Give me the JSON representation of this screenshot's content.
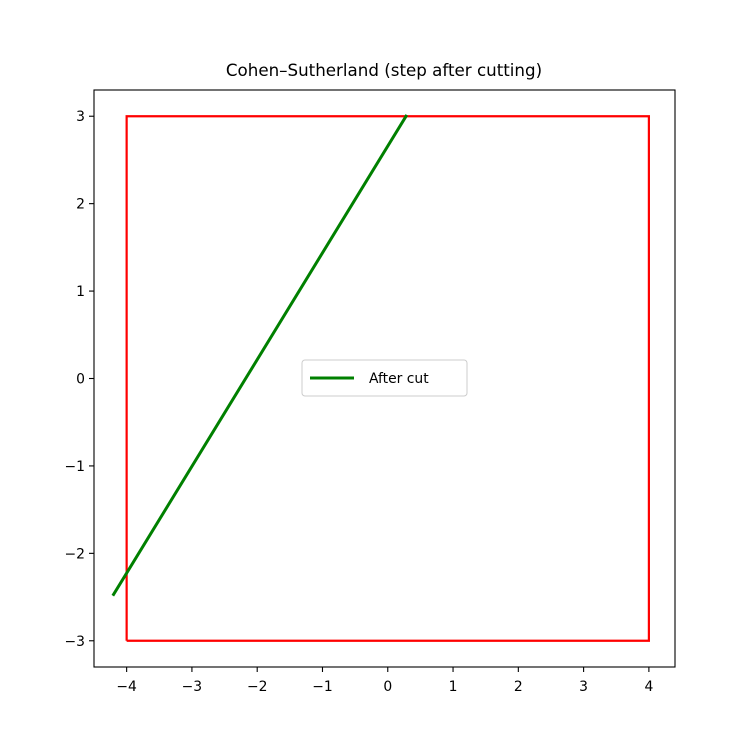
{
  "chart_data": {
    "type": "line",
    "title": "Cohen–Sutherland (step after cutting)",
    "xlabel": "",
    "ylabel": "",
    "xlim": [
      -4.5,
      4.4
    ],
    "ylim": [
      -3.3,
      3.3
    ],
    "x_ticks": [
      -4,
      -3,
      -2,
      -1,
      0,
      1,
      2,
      3,
      4
    ],
    "y_ticks": [
      -3,
      -2,
      -1,
      0,
      1,
      2,
      3
    ],
    "x_tick_labels": [
      "−4",
      "−3",
      "−2",
      "−1",
      "0",
      "1",
      "2",
      "3",
      "4"
    ],
    "y_tick_labels": [
      "−3",
      "−2",
      "−1",
      "0",
      "1",
      "2",
      "3"
    ],
    "grid": false,
    "legend_position": "center",
    "clip_window": {
      "x": [
        -4,
        4,
        4,
        -4,
        -4
      ],
      "y": [
        -3,
        -3,
        3,
        3,
        -3
      ],
      "color": "#ff0000"
    },
    "series": [
      {
        "name": "After cut",
        "x": [
          -4.2,
          0.28
        ],
        "y": [
          -2.47,
          3.0
        ],
        "color": "#008000"
      }
    ]
  }
}
